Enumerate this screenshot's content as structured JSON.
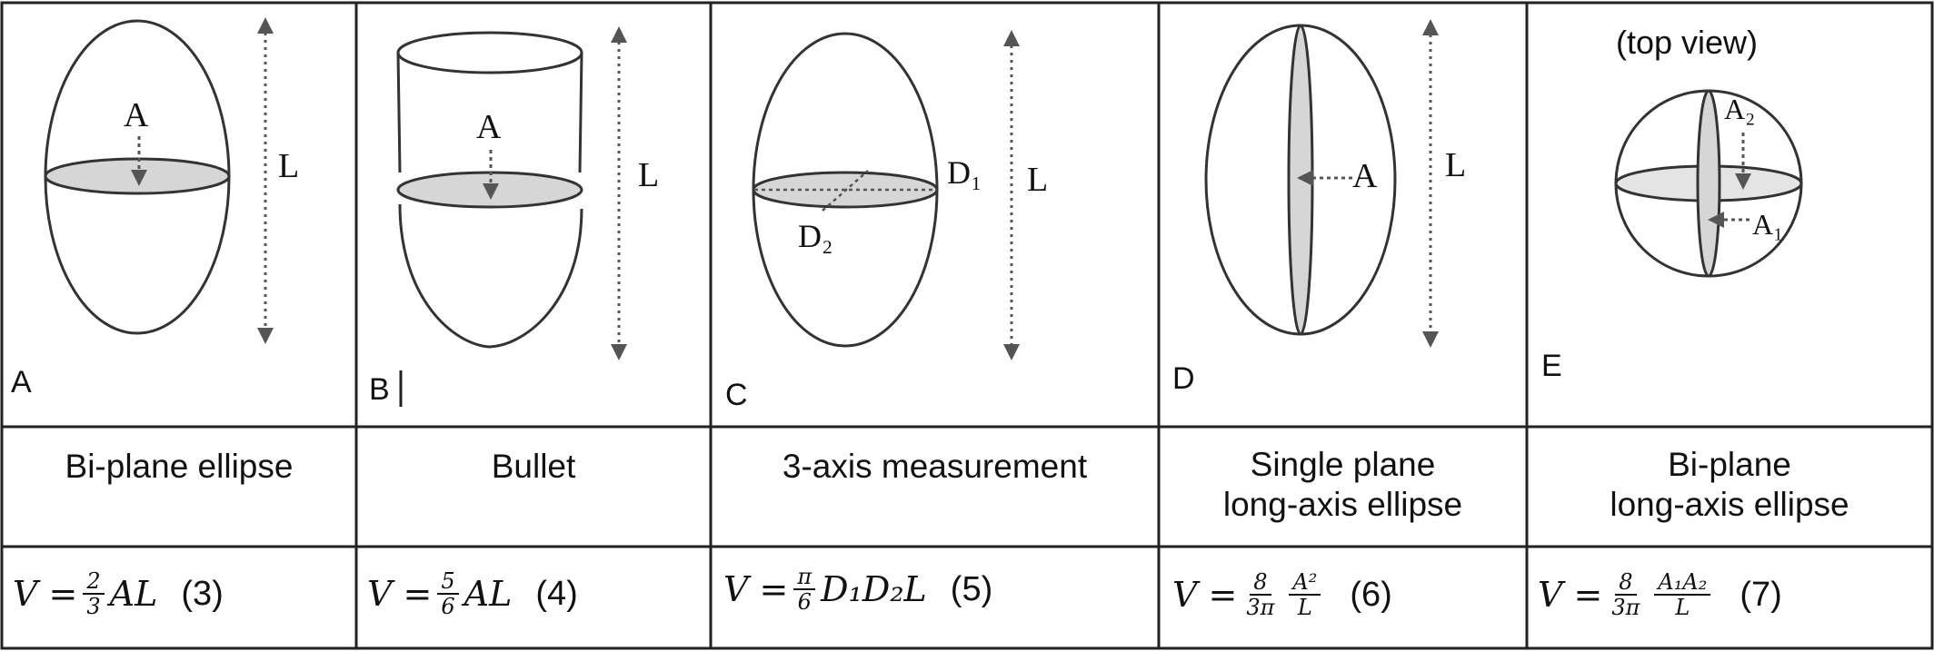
{
  "panels": [
    {
      "letter": "A",
      "title_lines": [
        "Bi-plane ellipse",
        ""
      ],
      "eq_pre": "V = ",
      "frac_n": "2",
      "frac_d": "3",
      "eq_post": "AL",
      "eq_num": "(3)"
    },
    {
      "letter": "B",
      "title_lines": [
        "Bullet",
        ""
      ],
      "eq_pre": "V = ",
      "frac_n": "5",
      "frac_d": "6",
      "eq_post": "AL",
      "eq_num": "(4)"
    },
    {
      "letter": "C",
      "title_lines": [
        "3-axis measurement",
        ""
      ],
      "eq_pre": "V = ",
      "frac_n": "π",
      "frac_d": "6",
      "eq_post": "D₁D₂L",
      "eq_num": "(5)"
    },
    {
      "letter": "D",
      "title_lines": [
        "Single plane",
        "long-axis ellipse"
      ],
      "eq_pre": "V = ",
      "frac_n": "8",
      "frac_d": "3π",
      "frac2_n": "A²",
      "frac2_d": "L",
      "eq_num": "(6)"
    },
    {
      "letter": "E",
      "title_lines": [
        "Bi-plane",
        "long-axis ellipse"
      ],
      "eq_pre": "V = ",
      "frac_n": "8",
      "frac_d": "3π",
      "frac2_n": "A₁A₂",
      "frac2_d": "L",
      "eq_num": "(7)"
    }
  ],
  "labels": {
    "area": "A",
    "length": "L",
    "d1": "D₁",
    "d2": "D₂",
    "a1": "A₁",
    "a2": "A₂",
    "top_view": "(top view)"
  },
  "colors": {
    "line": "#333333",
    "fill": "#d6d6d6",
    "arrow": "#555555"
  }
}
